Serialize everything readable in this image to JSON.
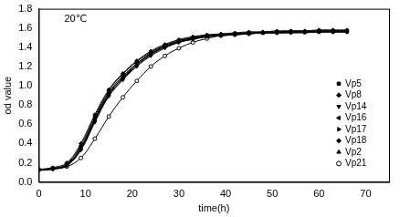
{
  "chart_data": {
    "type": "line",
    "annotations": [
      "20℃"
    ],
    "x_label": "time(h)",
    "y_label": "od value",
    "x": [
      0,
      3,
      6,
      9,
      12,
      15,
      18,
      21,
      24,
      27,
      30,
      33,
      36,
      39,
      42,
      45,
      48,
      51,
      54,
      57,
      60,
      63,
      66
    ],
    "series": [
      {
        "name": "Vp5",
        "color": "#000000",
        "marker": "square",
        "values": [
          0.13,
          0.14,
          0.18,
          0.35,
          0.65,
          0.92,
          1.08,
          1.22,
          1.33,
          1.41,
          1.46,
          1.49,
          1.51,
          1.53,
          1.54,
          1.55,
          1.55,
          1.56,
          1.56,
          1.56,
          1.56,
          1.57,
          1.57
        ]
      },
      {
        "name": "Vp8",
        "color": "#000000",
        "marker": "diamond",
        "values": [
          0.13,
          0.14,
          0.19,
          0.38,
          0.68,
          0.95,
          1.12,
          1.25,
          1.35,
          1.42,
          1.47,
          1.5,
          1.52,
          1.53,
          1.54,
          1.55,
          1.56,
          1.56,
          1.57,
          1.57,
          1.57,
          1.57,
          1.57
        ]
      },
      {
        "name": "Vp14",
        "color": "#000000",
        "marker": "triangle-down",
        "values": [
          0.12,
          0.13,
          0.17,
          0.33,
          0.62,
          0.89,
          1.06,
          1.2,
          1.31,
          1.39,
          1.45,
          1.48,
          1.51,
          1.52,
          1.53,
          1.54,
          1.55,
          1.55,
          1.55,
          1.56,
          1.56,
          1.56,
          1.56
        ]
      },
      {
        "name": "Vp16",
        "color": "#000000",
        "marker": "triangle-left",
        "values": [
          0.13,
          0.14,
          0.18,
          0.36,
          0.66,
          0.93,
          1.1,
          1.23,
          1.34,
          1.41,
          1.46,
          1.49,
          1.51,
          1.53,
          1.54,
          1.54,
          1.55,
          1.55,
          1.56,
          1.56,
          1.56,
          1.56,
          1.56
        ]
      },
      {
        "name": "Vp17",
        "color": "#000000",
        "marker": "triangle-right",
        "values": [
          0.12,
          0.14,
          0.17,
          0.34,
          0.63,
          0.9,
          1.07,
          1.21,
          1.32,
          1.4,
          1.45,
          1.49,
          1.51,
          1.52,
          1.53,
          1.54,
          1.55,
          1.55,
          1.55,
          1.55,
          1.56,
          1.56,
          1.56
        ]
      },
      {
        "name": "Vp18",
        "color": "#000000",
        "marker": "diamond",
        "values": [
          0.13,
          0.15,
          0.2,
          0.4,
          0.7,
          0.96,
          1.13,
          1.26,
          1.36,
          1.43,
          1.48,
          1.51,
          1.53,
          1.54,
          1.55,
          1.56,
          1.56,
          1.57,
          1.57,
          1.57,
          1.58,
          1.58,
          1.58
        ]
      },
      {
        "name": "Vp2",
        "color": "#000000",
        "marker": "triangle-up",
        "values": [
          0.13,
          0.14,
          0.18,
          0.34,
          0.64,
          0.91,
          1.09,
          1.23,
          1.33,
          1.41,
          1.46,
          1.5,
          1.52,
          1.53,
          1.54,
          1.55,
          1.55,
          1.56,
          1.56,
          1.56,
          1.57,
          1.57,
          1.57
        ]
      },
      {
        "name": "Vp21",
        "color": "#000000",
        "marker": "circle",
        "values": [
          0.13,
          0.14,
          0.16,
          0.25,
          0.45,
          0.68,
          0.88,
          1.05,
          1.2,
          1.31,
          1.39,
          1.45,
          1.49,
          1.52,
          1.53,
          1.54,
          1.55,
          1.55,
          1.56,
          1.56,
          1.56,
          1.56,
          1.56
        ]
      }
    ],
    "xlim": [
      0,
      75
    ],
    "xticks": [
      0,
      10,
      20,
      30,
      40,
      50,
      60,
      70
    ],
    "ylim": [
      0,
      1.8
    ],
    "yticks": [
      {
        "value": 0,
        "label": "0.0"
      },
      0.2,
      0.4,
      0.6,
      0.8,
      {
        "value": 1,
        "label": "1.0"
      },
      1.2,
      1.4,
      1.6,
      1.8
    ],
    "grid": false,
    "legend": "right"
  }
}
